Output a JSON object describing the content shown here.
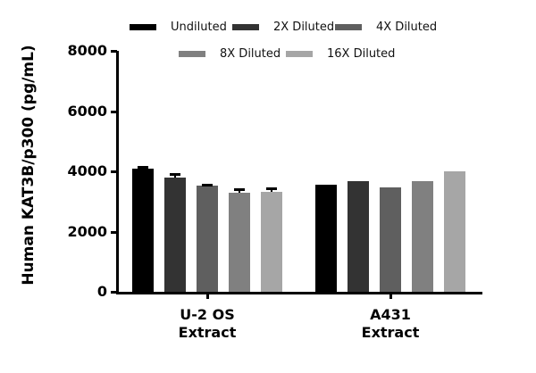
{
  "chart_data": {
    "type": "bar",
    "title": "",
    "xlabel": "",
    "ylabel": "Human KAT3B/p300 (pg/mL)",
    "ylim": [
      0,
      8000
    ],
    "yticks": [
      0,
      2000,
      4000,
      6000,
      8000
    ],
    "categories": [
      "U-2 OS Extract",
      "A431 Extract"
    ],
    "category_lines": [
      [
        "U-2 OS",
        "Extract"
      ],
      [
        "A431",
        "Extract"
      ]
    ],
    "legend_position": "top",
    "grid": false,
    "series": [
      {
        "name": "Undiluted",
        "color": "#000000",
        "values": [
          4090,
          3560
        ],
        "error": [
          60,
          0
        ]
      },
      {
        "name": "2X Diluted",
        "color": "#333333",
        "values": [
          3790,
          3670
        ],
        "error": [
          110,
          0
        ]
      },
      {
        "name": "4X Diluted",
        "color": "#5f5f5f",
        "values": [
          3530,
          3470
        ],
        "error": [
          40,
          0
        ]
      },
      {
        "name": "8X Diluted",
        "color": "#808080",
        "values": [
          3290,
          3670
        ],
        "error": [
          120,
          0
        ]
      },
      {
        "name": "16X Diluted",
        "color": "#a6a6a6",
        "values": [
          3320,
          4000
        ],
        "error": [
          130,
          0
        ]
      }
    ]
  }
}
